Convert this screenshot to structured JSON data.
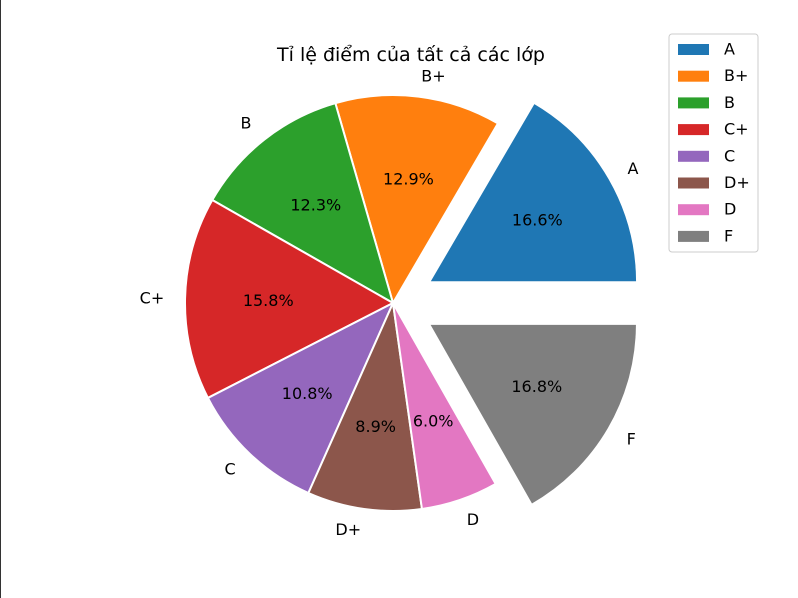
{
  "chart_data": {
    "type": "pie",
    "title": "Tỉ lệ điểm của tất cả các lớp",
    "categories": [
      "A",
      "B+",
      "B",
      "C+",
      "C",
      "D+",
      "D",
      "F"
    ],
    "values": [
      16.6,
      12.9,
      12.3,
      15.8,
      10.8,
      8.9,
      6.0,
      16.8
    ],
    "value_labels": [
      "16.6%",
      "12.9%",
      "12.3%",
      "15.8%",
      "10.8%",
      "8.9%",
      "6.0%",
      "16.8%"
    ],
    "colors": [
      "#1f77b4",
      "#ff7f0e",
      "#2ca02c",
      "#d62728",
      "#9467bd",
      "#8c564b",
      "#e377c2",
      "#7f7f7f"
    ],
    "exploded": [
      "A",
      "F"
    ],
    "start_angle_deg": 0,
    "direction": "counterclockwise",
    "legend": {
      "entries": [
        "A",
        "B+",
        "B",
        "C+",
        "C",
        "D+",
        "D",
        "F"
      ],
      "placement": "top-right"
    }
  }
}
